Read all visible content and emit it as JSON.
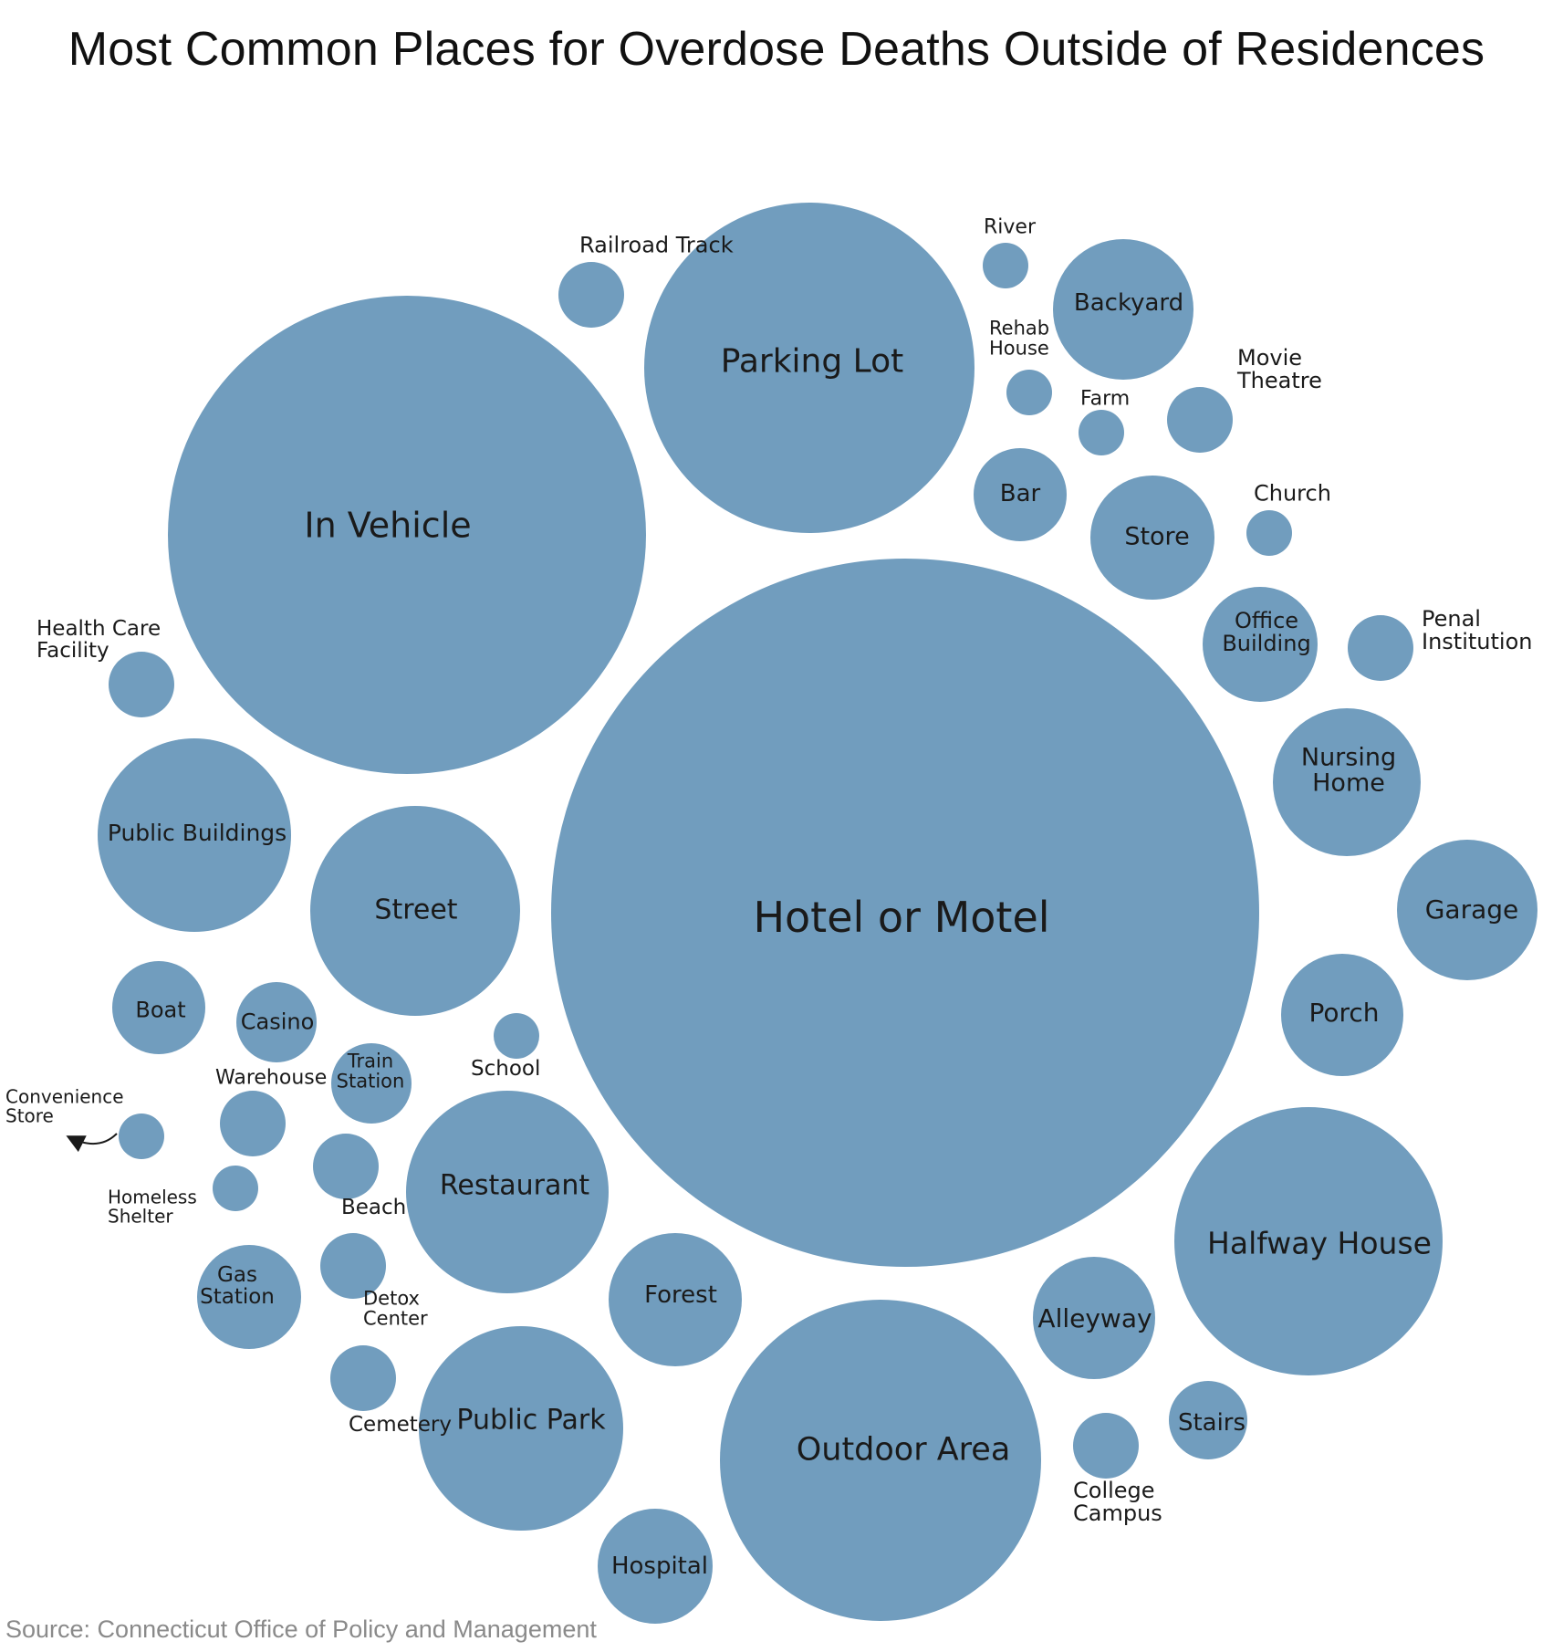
{
  "title": "Most Common Places for Overdose Deaths Outside of Residences",
  "source": "Source: Connecticut Office of Policy and Management",
  "colors": {
    "bubble": "#719dbe",
    "text": "#1a1a1a",
    "source": "#8a8a8a"
  },
  "chart_data": {
    "type": "bubble",
    "title": "Most Common Places for Overdose Deaths Outside of Residences",
    "value_encoding": "circle area (relative, no values printed)",
    "items": [
      {
        "label": "Hotel or Motel",
        "relative_size": 1.0
      },
      {
        "label": "In Vehicle",
        "relative_size": 0.456
      },
      {
        "label": "Parking Lot",
        "relative_size": 0.217
      },
      {
        "label": "Outdoor Area",
        "relative_size": 0.193
      },
      {
        "label": "Halfway House",
        "relative_size": 0.145
      },
      {
        "label": "Street",
        "relative_size": 0.087
      },
      {
        "label": "Restaurant",
        "relative_size": 0.083
      },
      {
        "label": "Public Park",
        "relative_size": 0.083
      },
      {
        "label": "Public Buildings",
        "relative_size": 0.073
      },
      {
        "label": "Nursing Home",
        "relative_size": 0.044
      },
      {
        "label": "Garage",
        "relative_size": 0.039
      },
      {
        "label": "Forest",
        "relative_size": 0.035
      },
      {
        "label": "Porch",
        "relative_size": 0.03
      },
      {
        "label": "Store",
        "relative_size": 0.03
      },
      {
        "label": "Backyard",
        "relative_size": 0.039
      },
      {
        "label": "Alleyway",
        "relative_size": 0.03
      },
      {
        "label": "Office Building",
        "relative_size": 0.026
      },
      {
        "label": "Hospital",
        "relative_size": 0.026
      },
      {
        "label": "Gas Station",
        "relative_size": 0.022
      },
      {
        "label": "Bar",
        "relative_size": 0.017
      },
      {
        "label": "Boat",
        "relative_size": 0.017
      },
      {
        "label": "Casino",
        "relative_size": 0.013
      },
      {
        "label": "Stairs",
        "relative_size": 0.013
      },
      {
        "label": "Movie Theatre",
        "relative_size": 0.009
      },
      {
        "label": "Penal Institution",
        "relative_size": 0.009
      },
      {
        "label": "Train Station",
        "relative_size": 0.013
      },
      {
        "label": "Warehouse",
        "relative_size": 0.009
      },
      {
        "label": "Beach",
        "relative_size": 0.009
      },
      {
        "label": "Detox Center",
        "relative_size": 0.009
      },
      {
        "label": "Cemetery",
        "relative_size": 0.009
      },
      {
        "label": "College Campus",
        "relative_size": 0.009
      },
      {
        "label": "Health Care Facility",
        "relative_size": 0.009
      },
      {
        "label": "Railroad Track",
        "relative_size": 0.009
      },
      {
        "label": "Rehab House",
        "relative_size": 0.004
      },
      {
        "label": "Farm",
        "relative_size": 0.004
      },
      {
        "label": "River",
        "relative_size": 0.004
      },
      {
        "label": "Church",
        "relative_size": 0.004
      },
      {
        "label": "School",
        "relative_size": 0.004
      },
      {
        "label": "Convenience Store",
        "relative_size": 0.004
      },
      {
        "label": "Homeless Shelter",
        "relative_size": 0.004
      }
    ]
  }
}
